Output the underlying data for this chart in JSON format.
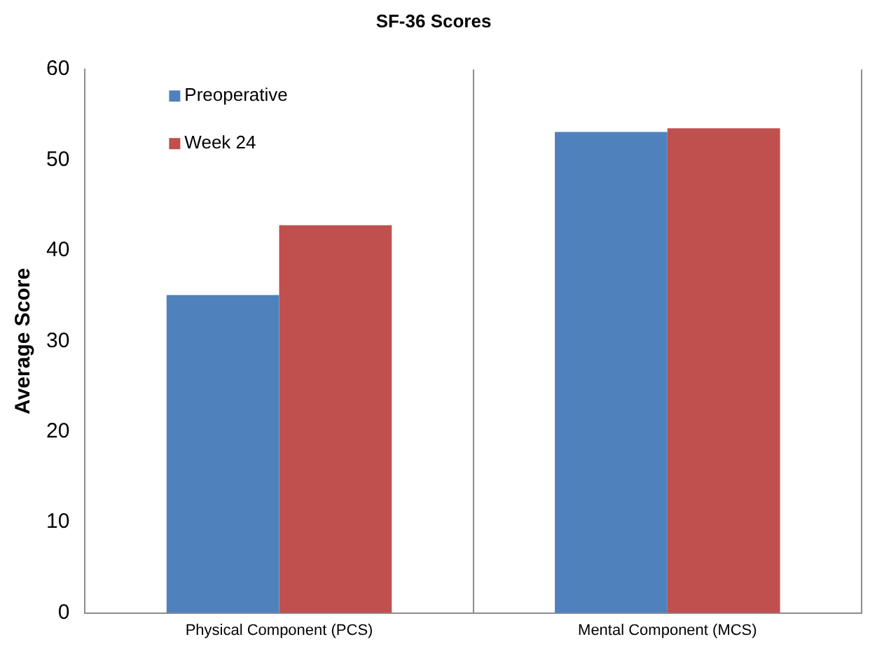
{
  "chart_data": {
    "type": "bar",
    "title": "SF-36 Scores",
    "ylabel": "Average Score",
    "categories": [
      "Physical Component (PCS)",
      "Mental Component (MCS)"
    ],
    "series": [
      {
        "name": "Preoperative",
        "color": "#4f81bd",
        "values": [
          35.1,
          53.1
        ]
      },
      {
        "name": "Week 24",
        "color": "#c0504d",
        "values": [
          42.8,
          53.5
        ]
      }
    ],
    "ylim": [
      0,
      60
    ],
    "yticks": [
      0,
      10,
      20,
      30,
      40,
      50,
      60
    ],
    "grid": "x",
    "legend": "top left"
  }
}
